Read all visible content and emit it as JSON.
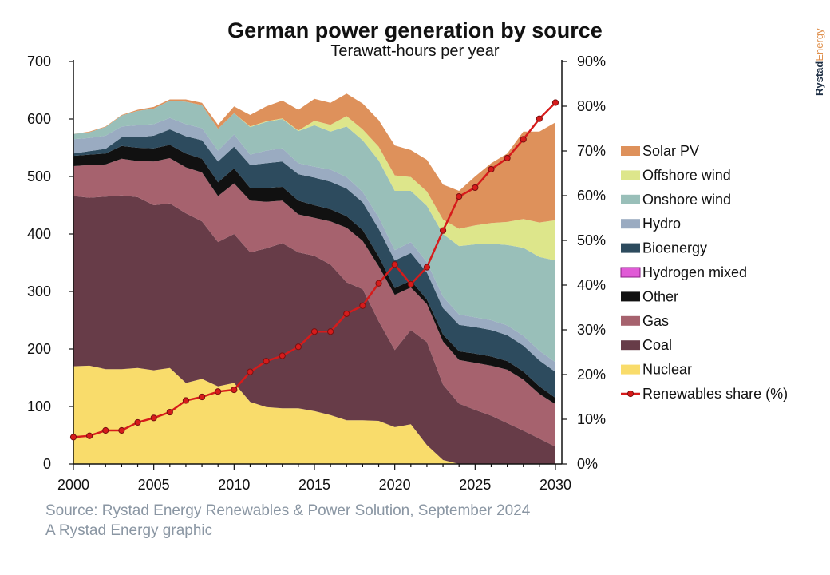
{
  "brand": {
    "part1": "Rystad",
    "part2": "Energy"
  },
  "chart_data": {
    "type": "area",
    "title": "German power generation by source",
    "subtitle": "Terawatt-hours per year",
    "x": [
      2000,
      2001,
      2002,
      2003,
      2004,
      2005,
      2006,
      2007,
      2008,
      2009,
      2010,
      2011,
      2012,
      2013,
      2014,
      2015,
      2016,
      2017,
      2018,
      2019,
      2020,
      2021,
      2022,
      2023,
      2024,
      2025,
      2026,
      2027,
      2028,
      2029,
      2030
    ],
    "x_ticks": [
      2000,
      2005,
      2010,
      2015,
      2020,
      2025,
      2030
    ],
    "ylim": [
      0,
      700
    ],
    "y_ticks": [
      0,
      100,
      200,
      300,
      400,
      500,
      600,
      700
    ],
    "y2lim": [
      0,
      90
    ],
    "y2_ticks": [
      "0%",
      "10%",
      "20%",
      "30%",
      "40%",
      "50%",
      "60%",
      "70%",
      "80%",
      "90%"
    ],
    "stack_order": [
      "Nuclear",
      "Coal",
      "Gas",
      "Other",
      "Hydrogen mixed",
      "Bioenergy",
      "Hydro",
      "Onshore wind",
      "Offshore wind",
      "Solar PV"
    ],
    "series": [
      {
        "name": "Nuclear",
        "color": "#f9dc6b",
        "values": [
          170,
          171,
          165,
          165,
          167,
          163,
          167,
          141,
          148,
          135,
          141,
          108,
          99,
          97,
          97,
          92,
          85,
          76,
          76,
          75,
          64,
          69,
          33,
          7,
          0,
          0,
          0,
          0,
          0,
          0,
          0
        ]
      },
      {
        "name": "Coal",
        "color": "#673c48",
        "values": [
          296,
          292,
          300,
          302,
          297,
          287,
          286,
          295,
          274,
          251,
          259,
          260,
          276,
          287,
          271,
          270,
          262,
          240,
          228,
          173,
          134,
          164,
          179,
          131,
          105,
          94,
          84,
          71,
          58,
          44,
          30
        ]
      },
      {
        "name": "Gas",
        "color": "#a6626e",
        "values": [
          52,
          57,
          56,
          64,
          63,
          76,
          79,
          80,
          85,
          80,
          88,
          90,
          81,
          74,
          66,
          66,
          75,
          95,
          84,
          96,
          96,
          74,
          66,
          75,
          76,
          82,
          87,
          93,
          89,
          78,
          74
        ]
      },
      {
        "name": "Other",
        "color": "#111111",
        "values": [
          18,
          18,
          19,
          22,
          23,
          23,
          23,
          24,
          24,
          24,
          26,
          22,
          24,
          24,
          24,
          22,
          21,
          20,
          19,
          17,
          12,
          12,
          8,
          12,
          15,
          16,
          16,
          15,
          14,
          13,
          11
        ]
      },
      {
        "name": "Hydrogen mixed",
        "color": "#e05ad6",
        "values": [
          0,
          0,
          0,
          0,
          0,
          0,
          0,
          0,
          0,
          0,
          0,
          0,
          0,
          0,
          0,
          0,
          0,
          0,
          0,
          0,
          0,
          0,
          0,
          0,
          0,
          0,
          0,
          0,
          0,
          0,
          0
        ]
      },
      {
        "name": "Bioenergy",
        "color": "#2d4b5e",
        "values": [
          4,
          6,
          8,
          15,
          18,
          22,
          27,
          30,
          32,
          36,
          38,
          40,
          43,
          44,
          46,
          48,
          48,
          48,
          48,
          48,
          48,
          48,
          47,
          46,
          46,
          46,
          46,
          45,
          45,
          45,
          45
        ]
      },
      {
        "name": "Hydro",
        "color": "#9aabc1",
        "values": [
          25,
          23,
          23,
          19,
          21,
          20,
          20,
          21,
          21,
          19,
          21,
          18,
          22,
          23,
          19,
          19,
          21,
          20,
          18,
          20,
          18,
          19,
          18,
          20,
          18,
          17,
          17,
          17,
          17,
          17,
          17
        ]
      },
      {
        "name": "Onshore wind",
        "color": "#99bfb9",
        "values": [
          9,
          10,
          15,
          19,
          25,
          27,
          30,
          39,
          40,
          38,
          37,
          48,
          50,
          51,
          56,
          72,
          66,
          88,
          90,
          99,
          103,
          89,
          98,
          109,
          119,
          127,
          133,
          140,
          153,
          163,
          177
        ]
      },
      {
        "name": "Offshore wind",
        "color": "#dde68b",
        "values": [
          0,
          0,
          0,
          0,
          0,
          0,
          0,
          0,
          0,
          0,
          0,
          1,
          1,
          1,
          1,
          8,
          12,
          18,
          19,
          24,
          27,
          24,
          25,
          25,
          30,
          33,
          36,
          40,
          50,
          60,
          70
        ]
      },
      {
        "name": "Solar PV",
        "color": "#de915b",
        "values": [
          0,
          1,
          1,
          1,
          2,
          3,
          2,
          4,
          4,
          7,
          12,
          20,
          26,
          31,
          36,
          38,
          38,
          39,
          45,
          46,
          52,
          47,
          55,
          61,
          66,
          85,
          104,
          119,
          152,
          158,
          170
        ]
      }
    ],
    "line_series": {
      "name": "Renewables share (%)",
      "color": "#d61b1b",
      "axis": "right",
      "values": [
        6,
        6.3,
        7.5,
        7.5,
        9.3,
        10.3,
        11.6,
        14.2,
        15,
        16.2,
        16.6,
        20.6,
        23,
        24.2,
        26.2,
        29.6,
        29.6,
        33.6,
        35.4,
        40.4,
        44.6,
        40.2,
        44,
        52.2,
        59.8,
        61.8,
        65.9,
        68.4,
        72.6,
        77.2,
        80.8
      ]
    },
    "legend": [
      "Solar PV",
      "Offshore wind",
      "Onshore wind",
      "Hydro",
      "Bioenergy",
      "Hydrogen mixed",
      "Other",
      "Gas",
      "Coal",
      "Nuclear",
      "Renewables share (%)"
    ],
    "legend_placement": "right",
    "grid": false
  },
  "source": "Source: Rystad Energy Renewables & Power Solution, September 2024",
  "credit": "A Rystad Energy graphic"
}
